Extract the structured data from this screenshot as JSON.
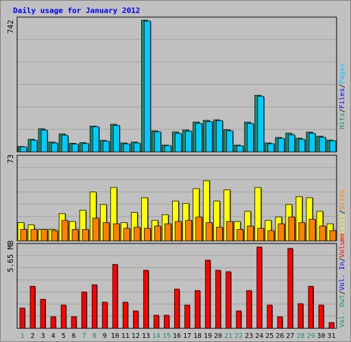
{
  "chart_data": {
    "type": "bar",
    "title": "Daily usage for January 2012",
    "categories": [
      "1",
      "2",
      "3",
      "4",
      "5",
      "6",
      "7",
      "8",
      "9",
      "10",
      "11",
      "12",
      "13",
      "14",
      "15",
      "16",
      "17",
      "18",
      "19",
      "20",
      "21",
      "22",
      "23",
      "24",
      "25",
      "26",
      "27",
      "28",
      "29",
      "30",
      "31"
    ],
    "weekend_days": [
      "1",
      "7",
      "8",
      "14",
      "15",
      "21",
      "22",
      "28",
      "29"
    ],
    "panels": [
      {
        "max_label": "742",
        "ylim": [
          0,
          742
        ],
        "series": [
          {
            "name": "Hits",
            "color": "#1c8e70",
            "values": [
              30,
              71,
              130,
              55,
              101,
              48,
              52,
              145,
              65,
              155,
              50,
              55,
              740,
              118,
              38,
              112,
              123,
              168,
              177,
              180,
              125,
              38,
              167,
              318,
              50,
              81,
              105,
              77,
              111,
              88,
              66
            ]
          },
          {
            "name": "Files",
            "color": "#00ccff",
            "values": [
              28,
              65,
              122,
              50,
              93,
              44,
              47,
              141,
              60,
              148,
              45,
              50,
              735,
              112,
              35,
              104,
              116,
              160,
              170,
              176,
              118,
              34,
              160,
              312,
              46,
              76,
              96,
              70,
              104,
              82,
              62
            ]
          }
        ]
      },
      {
        "max_label": "73",
        "ylim": [
          0,
          73
        ],
        "series": [
          {
            "name": "Visits",
            "color": "#ffff00",
            "values": [
              16,
              14,
              10,
              10,
              24,
              17,
              27,
              43,
              32,
              47,
              16,
              25,
              38,
              18,
              23,
              35,
              33,
              46,
              53,
              35,
              45,
              17,
              26,
              47,
              18,
              21,
              32,
              39,
              38,
              26,
              15
            ]
          },
          {
            "name": "Sites",
            "color": "#ff8000",
            "values": [
              10,
              10,
              10,
              9,
              18,
              10,
              10,
              20,
              16,
              15,
              11,
              12,
              11,
              13,
              15,
              17,
              18,
              21,
              16,
              12,
              17,
              10,
              13,
              11,
              9,
              15,
              21,
              16,
              19,
              13,
              9
            ]
          }
        ]
      },
      {
        "max_label": "5.65 MB",
        "ylim": [
          0,
          5.65
        ],
        "series": [
          {
            "name": "Volume",
            "color": "#ff0000",
            "values": [
              1.4,
              2.9,
              2.0,
              0.8,
              1.6,
              0.8,
              2.5,
              3.0,
              1.8,
              4.4,
              1.8,
              1.2,
              4.0,
              0.9,
              0.9,
              2.7,
              1.6,
              2.6,
              4.7,
              4.0,
              3.9,
              1.2,
              2.6,
              5.6,
              1.6,
              0.8,
              5.5,
              1.7,
              2.9,
              1.6,
              0.4
            ]
          }
        ]
      }
    ],
    "legend": {
      "items": [
        {
          "label": "Hits",
          "color": "#1c8e70"
        },
        {
          "label": "Files",
          "color": "#0000ff"
        },
        {
          "label": "Pages",
          "color": "#00ccff"
        },
        {
          "label": "Visits",
          "color": "#ffff00"
        },
        {
          "label": "Sites",
          "color": "#ff8000"
        },
        {
          "label": "Vol. Out",
          "color": "#1c8e70"
        },
        {
          "label": "Vol. In",
          "color": "#0000ff"
        },
        {
          "label": "Volume",
          "color": "#ff0000"
        }
      ],
      "separator": "/",
      "placement": "right"
    },
    "grid": true,
    "colors": {
      "background": "#c0c0c0",
      "plot_bg": "#c0c0c0",
      "gridline": "#a0a0a0",
      "weekday_label": "#000000",
      "weekend_label": "#1c8e70",
      "title": "#0000ff"
    }
  }
}
